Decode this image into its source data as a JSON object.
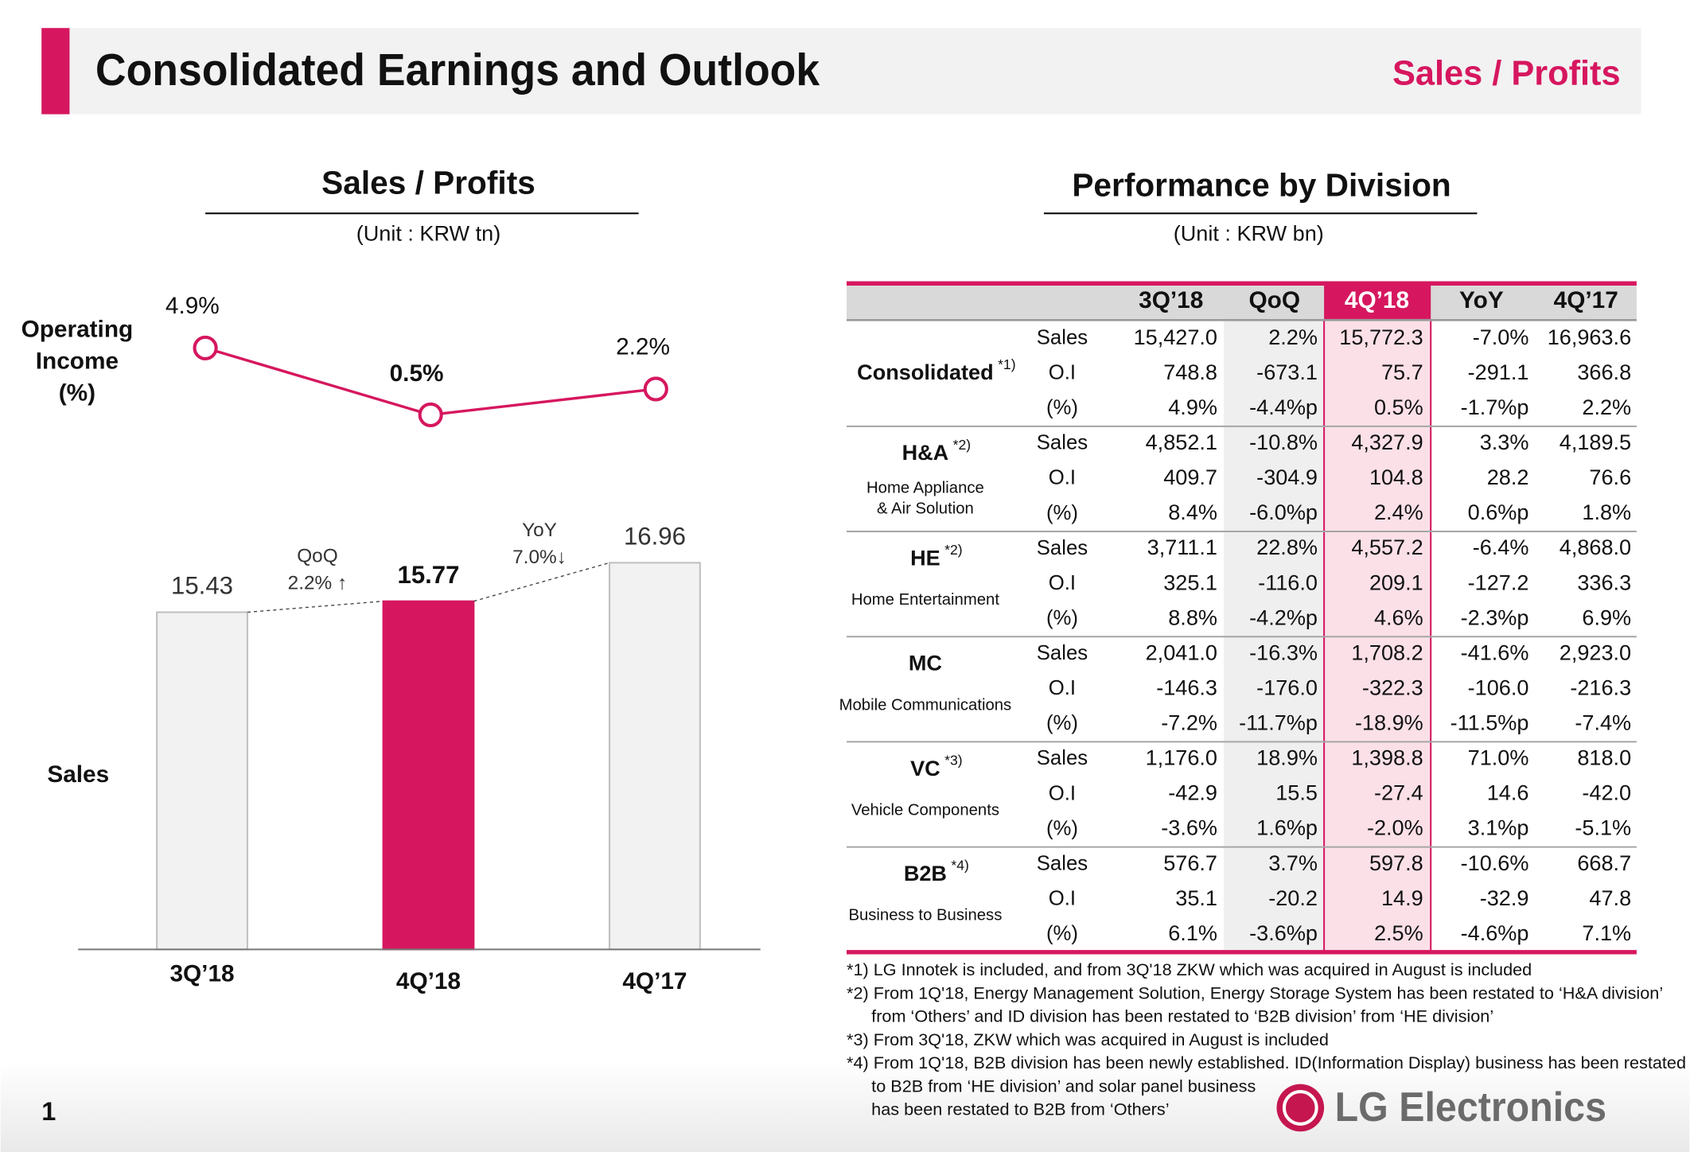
{
  "header": {
    "title": "Consolidated Earnings and Outlook",
    "tag": "Sales / Profits"
  },
  "left": {
    "title": "Sales / Profits",
    "unit": "(Unit : KRW tn)"
  },
  "chart_data": [
    {
      "type": "line",
      "y_label": [
        "Operating",
        "Income",
        "(%)"
      ],
      "categories": [
        "3Q’18",
        "4Q’18",
        "4Q’17"
      ],
      "values": [
        4.9,
        0.5,
        2.2
      ],
      "value_labels": [
        "4.9%",
        "0.5%",
        "2.2%"
      ],
      "color": "#d6175f",
      "ylim": [
        0,
        6
      ]
    },
    {
      "type": "bar",
      "y_label": "Sales",
      "categories": [
        "3Q’18",
        "4Q’18",
        "4Q’17"
      ],
      "values": [
        15.43,
        15.77,
        16.96
      ],
      "colors": [
        "#f2f2f2",
        "#d6175f",
        "#f2f2f2"
      ],
      "ylim": [
        5,
        18
      ],
      "annotations": [
        [
          "QoQ",
          "2.2% ↑"
        ],
        [
          "YoY",
          "7.0%↓"
        ]
      ]
    }
  ],
  "right": {
    "title": "Performance by Division",
    "unit": "(Unit : KRW bn)"
  },
  "table": {
    "columns": [
      "3Q’18",
      "QoQ",
      "4Q’18",
      "YoY",
      "4Q’17"
    ],
    "groups": [
      {
        "name": "Consolidated",
        "note": "*1)",
        "subtitle": [],
        "rows": [
          [
            "Sales",
            "15,427.0",
            "2.2%",
            "15,772.3",
            "-7.0%",
            "16,963.6"
          ],
          [
            "O.I",
            "748.8",
            "-673.1",
            "75.7",
            "-291.1",
            "366.8"
          ],
          [
            "(%)",
            "4.9%",
            "-4.4%p",
            "0.5%",
            "-1.7%p",
            "2.2%"
          ]
        ]
      },
      {
        "name": "H&A",
        "note": "*2)",
        "subtitle": [
          "Home Appliance",
          "& Air Solution"
        ],
        "rows": [
          [
            "Sales",
            "4,852.1",
            "-10.8%",
            "4,327.9",
            "3.3%",
            "4,189.5"
          ],
          [
            "O.I",
            "409.7",
            "-304.9",
            "104.8",
            "28.2",
            "76.6"
          ],
          [
            "(%)",
            "8.4%",
            "-6.0%p",
            "2.4%",
            "0.6%p",
            "1.8%"
          ]
        ]
      },
      {
        "name": "HE",
        "note": "*2)",
        "subtitle": [
          "Home Entertainment"
        ],
        "rows": [
          [
            "Sales",
            "3,711.1",
            "22.8%",
            "4,557.2",
            "-6.4%",
            "4,868.0"
          ],
          [
            "O.I",
            "325.1",
            "-116.0",
            "209.1",
            "-127.2",
            "336.3"
          ],
          [
            "(%)",
            "8.8%",
            "-4.2%p",
            "4.6%",
            "-2.3%p",
            "6.9%"
          ]
        ]
      },
      {
        "name": "MC",
        "note": null,
        "subtitle": [
          "Mobile Communications"
        ],
        "rows": [
          [
            "Sales",
            "2,041.0",
            "-16.3%",
            "1,708.2",
            "-41.6%",
            "2,923.0"
          ],
          [
            "O.I",
            "-146.3",
            "-176.0",
            "-322.3",
            "-106.0",
            "-216.3"
          ],
          [
            "(%)",
            "-7.2%",
            "-11.7%p",
            "-18.9%",
            "-11.5%p",
            "-7.4%"
          ]
        ]
      },
      {
        "name": "VC",
        "note": "*3)",
        "subtitle": [
          "Vehicle Components"
        ],
        "rows": [
          [
            "Sales",
            "1,176.0",
            "18.9%",
            "1,398.8",
            "71.0%",
            "818.0"
          ],
          [
            "O.I",
            "-42.9",
            "15.5",
            "-27.4",
            "14.6",
            "-42.0"
          ],
          [
            "(%)",
            "-3.6%",
            "1.6%p",
            "-2.0%",
            "3.1%p",
            "-5.1%"
          ]
        ]
      },
      {
        "name": "B2B",
        "note": "*4)",
        "subtitle": [
          "Business to Business"
        ],
        "rows": [
          [
            "Sales",
            "576.7",
            "3.7%",
            "597.8",
            "-10.6%",
            "668.7"
          ],
          [
            "O.I",
            "35.1",
            "-20.2",
            "14.9",
            "-32.9",
            "47.8"
          ],
          [
            "(%)",
            "6.1%",
            "-3.6%p",
            "2.5%",
            "-4.6%p",
            "7.1%"
          ]
        ]
      }
    ]
  },
  "footnotes": [
    [
      "*1) LG Innotek is included, and from 3Q'18 ZKW which was acquired in August is included"
    ],
    [
      "*2) From 1Q'18, Energy Management Solution, Energy Storage System has been restated to ‘H&A division’",
      "from ‘Others’ and ID division has been restated to ‘B2B division’ from ‘HE division’"
    ],
    [
      "*3) From 3Q'18, ZKW which was acquired in August is included"
    ],
    [
      "*4) From 1Q'18, B2B division has been newly established. ID(Information Display) business has been restated",
      "to B2B from ‘HE division’ and solar panel business",
      "has been restated to B2B from ‘Others’"
    ]
  ],
  "page_number": "1",
  "logo": "LG Electronics"
}
